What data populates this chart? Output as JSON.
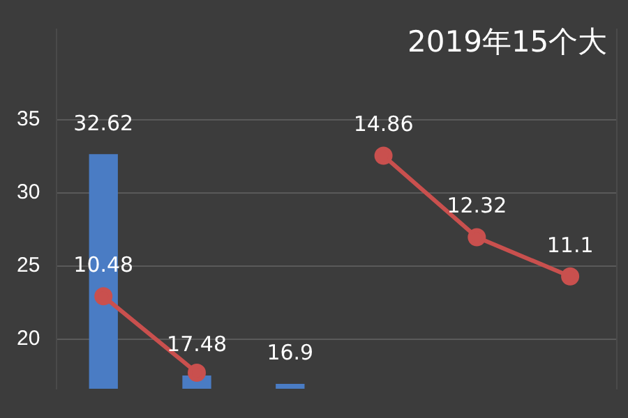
{
  "chart_data": {
    "type": "bar",
    "title": "2019年15个大",
    "categories": [
      null,
      null,
      null,
      null,
      null,
      null
    ],
    "series": [
      {
        "color": "#4a7cc4",
        "values": [
          32.62,
          17.48,
          16.9,
          null,
          null,
          null
        ],
        "value_labels": [
          "32.62",
          "17.48",
          "16.9",
          null,
          null,
          null
        ]
      },
      {
        "type": "line",
        "axis": "y2",
        "color": "#c9504e",
        "values": [
          10.48,
          8.1,
          null,
          14.86,
          12.32,
          11.1
        ],
        "value_labels": [
          "10.48",
          null,
          null,
          "14.86",
          "12.32",
          "11.1"
        ]
      }
    ],
    "ylim": [
      16.6,
      41.2
    ],
    "yticks": [
      20,
      25,
      30,
      35
    ],
    "y2lim": [
      7.6,
      18.8
    ],
    "grid": "y",
    "marker": "circle",
    "line_style": "solid",
    "tick_labels": "y"
  }
}
